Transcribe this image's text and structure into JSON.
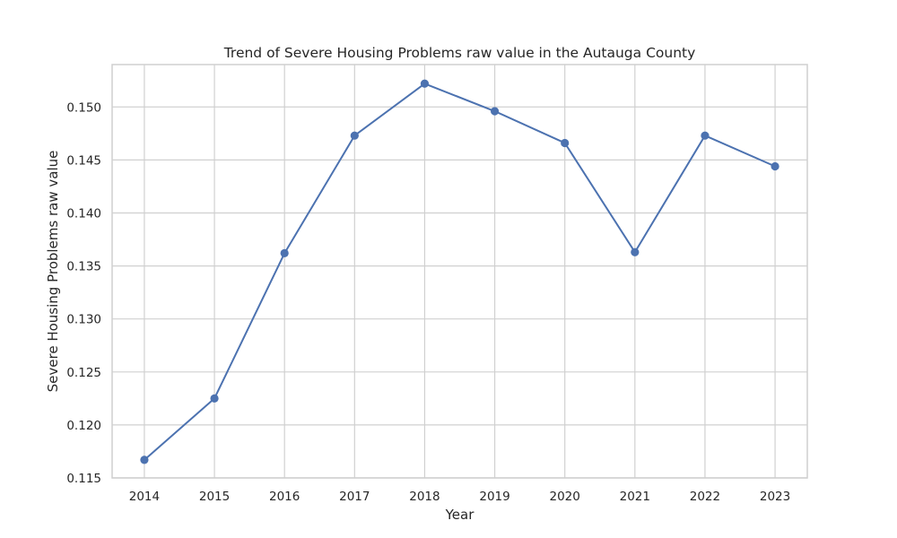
{
  "chart_data": {
    "type": "line",
    "title": "Trend of Severe Housing Problems raw value in the Autauga County",
    "xlabel": "Year",
    "ylabel": "Severe Housing Problems raw value",
    "x": [
      2014,
      2015,
      2016,
      2017,
      2018,
      2019,
      2020,
      2021,
      2022,
      2023
    ],
    "x_tick_labels": [
      "2014",
      "2015",
      "2016",
      "2017",
      "2018",
      "2019",
      "2020",
      "2021",
      "2022",
      "2023"
    ],
    "series": [
      {
        "values": [
          0.1167,
          0.1225,
          0.1362,
          0.1473,
          0.1522,
          0.1496,
          0.1466,
          0.1363,
          0.1473,
          0.1444
        ],
        "color": "#4c72b0",
        "marker": "circle"
      }
    ],
    "y_ticks": [
      0.115,
      0.12,
      0.125,
      0.13,
      0.135,
      0.14,
      0.145,
      0.15
    ],
    "y_tick_labels": [
      "0.115",
      "0.120",
      "0.125",
      "0.130",
      "0.135",
      "0.140",
      "0.145",
      "0.150"
    ],
    "ylim": [
      0.115,
      0.154
    ],
    "grid": true
  }
}
